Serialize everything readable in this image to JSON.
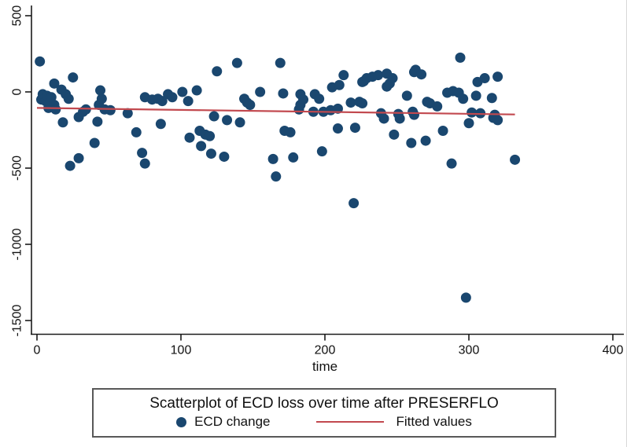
{
  "figure": {
    "xlabel": "time",
    "legend": {
      "title": "Scatterplot of ECD loss over time after PRESERFLO",
      "items": [
        {
          "type": "marker",
          "label": "ECD change"
        },
        {
          "type": "line",
          "label": "Fitted values"
        }
      ]
    }
  },
  "colors": {
    "marker": "#1a476f",
    "fit_line": "#c2494f",
    "axis": "#1a1a1a",
    "text": "#111111"
  },
  "chart_data": {
    "type": "scatter",
    "title": "Scatterplot of ECD loss over time after PRESERFLO",
    "xlabel": "time",
    "ylabel": "",
    "xlim": [
      0,
      407
    ],
    "ylim": [
      -1590,
      500
    ],
    "x_ticks": [
      0,
      100,
      200,
      300,
      400
    ],
    "y_ticks": [
      500,
      0,
      -500,
      -1000,
      -1500
    ],
    "grid": false,
    "legend_position": "bottom",
    "series": [
      {
        "name": "ECD change",
        "type": "scatter",
        "color": "#1a476f",
        "points": [
          [
            2,
            200
          ],
          [
            12,
            55
          ],
          [
            17,
            15
          ],
          [
            25,
            95
          ],
          [
            3,
            -50
          ],
          [
            4,
            -15
          ],
          [
            6,
            -60
          ],
          [
            7,
            -25
          ],
          [
            8,
            -105
          ],
          [
            9,
            -70
          ],
          [
            10,
            -35
          ],
          [
            12,
            -85
          ],
          [
            13,
            -115
          ],
          [
            20,
            -15
          ],
          [
            22,
            -45
          ],
          [
            18,
            -200
          ],
          [
            29,
            -165
          ],
          [
            32,
            -130
          ],
          [
            34,
            -115
          ],
          [
            23,
            -485
          ],
          [
            29,
            -435
          ],
          [
            40,
            -335
          ],
          [
            42,
            -195
          ],
          [
            43,
            -85
          ],
          [
            44,
            10
          ],
          [
            45,
            -45
          ],
          [
            47,
            -115
          ],
          [
            51,
            -120
          ],
          [
            63,
            -140
          ],
          [
            69,
            -265
          ],
          [
            73,
            -400
          ],
          [
            75,
            -470
          ],
          [
            75,
            -35
          ],
          [
            80,
            -50
          ],
          [
            84,
            -45
          ],
          [
            87,
            -60
          ],
          [
            86,
            -210
          ],
          [
            91,
            -15
          ],
          [
            94,
            -35
          ],
          [
            101,
            0
          ],
          [
            105,
            -60
          ],
          [
            106,
            -300
          ],
          [
            111,
            10
          ],
          [
            113,
            -255
          ],
          [
            114,
            -355
          ],
          [
            117,
            -280
          ],
          [
            120,
            -290
          ],
          [
            121,
            -405
          ],
          [
            123,
            -160
          ],
          [
            125,
            135
          ],
          [
            130,
            -425
          ],
          [
            132,
            -185
          ],
          [
            139,
            190
          ],
          [
            141,
            -200
          ],
          [
            144,
            -45
          ],
          [
            146,
            -70
          ],
          [
            148,
            -85
          ],
          [
            155,
            0
          ],
          [
            164,
            -440
          ],
          [
            166,
            -555
          ],
          [
            169,
            190
          ],
          [
            171,
            -10
          ],
          [
            172,
            -255
          ],
          [
            176,
            -265
          ],
          [
            178,
            -430
          ],
          [
            182,
            -115
          ],
          [
            183,
            -15
          ],
          [
            183,
            -85
          ],
          [
            185,
            -50
          ],
          [
            192,
            -130
          ],
          [
            193,
            -15
          ],
          [
            196,
            -45
          ],
          [
            198,
            -390
          ],
          [
            199,
            -130
          ],
          [
            204,
            -120
          ],
          [
            205,
            30
          ],
          [
            209,
            -110
          ],
          [
            209,
            -240
          ],
          [
            210,
            45
          ],
          [
            213,
            110
          ],
          [
            218,
            -70
          ],
          [
            220,
            -730
          ],
          [
            221,
            -235
          ],
          [
            224,
            -65
          ],
          [
            226,
            -75
          ],
          [
            226,
            65
          ],
          [
            227,
            70
          ],
          [
            229,
            90
          ],
          [
            233,
            100
          ],
          [
            237,
            110
          ],
          [
            239,
            -140
          ],
          [
            241,
            -175
          ],
          [
            243,
            120
          ],
          [
            243,
            35
          ],
          [
            245,
            55
          ],
          [
            247,
            90
          ],
          [
            248,
            -280
          ],
          [
            251,
            -145
          ],
          [
            252,
            -175
          ],
          [
            257,
            -25
          ],
          [
            260,
            -335
          ],
          [
            261,
            -130
          ],
          [
            262,
            130
          ],
          [
            262,
            -150
          ],
          [
            263,
            145
          ],
          [
            267,
            115
          ],
          [
            270,
            -320
          ],
          [
            271,
            -65
          ],
          [
            273,
            -75
          ],
          [
            278,
            -95
          ],
          [
            282,
            -255
          ],
          [
            285,
            -5
          ],
          [
            288,
            -470
          ],
          [
            289,
            5
          ],
          [
            293,
            -5
          ],
          [
            294,
            225
          ],
          [
            296,
            -45
          ],
          [
            298,
            -1350
          ],
          [
            300,
            -205
          ],
          [
            302,
            -135
          ],
          [
            305,
            -25
          ],
          [
            306,
            65
          ],
          [
            308,
            -140
          ],
          [
            311,
            90
          ],
          [
            316,
            -40
          ],
          [
            317,
            -170
          ],
          [
            318,
            -150
          ],
          [
            320,
            100
          ],
          [
            320,
            -185
          ],
          [
            332,
            -445
          ]
        ]
      },
      {
        "name": "Fitted values",
        "type": "line",
        "color": "#c2494f",
        "points": [
          [
            0,
            -105
          ],
          [
            332,
            -148
          ]
        ]
      }
    ]
  }
}
